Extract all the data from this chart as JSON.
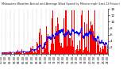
{
  "title": "Milwaukee Weather Actual and Average Wind Speed by Minute mph (Last 24 Hours)",
  "bar_color": "#ff0000",
  "line_color": "#0000ff",
  "background_color": "#ffffff",
  "grid_color": "#bbbbbb",
  "ylim": [
    0,
    14
  ],
  "yticks": [
    2,
    4,
    6,
    8,
    10,
    12,
    14
  ],
  "num_points": 1440,
  "seed": 7
}
